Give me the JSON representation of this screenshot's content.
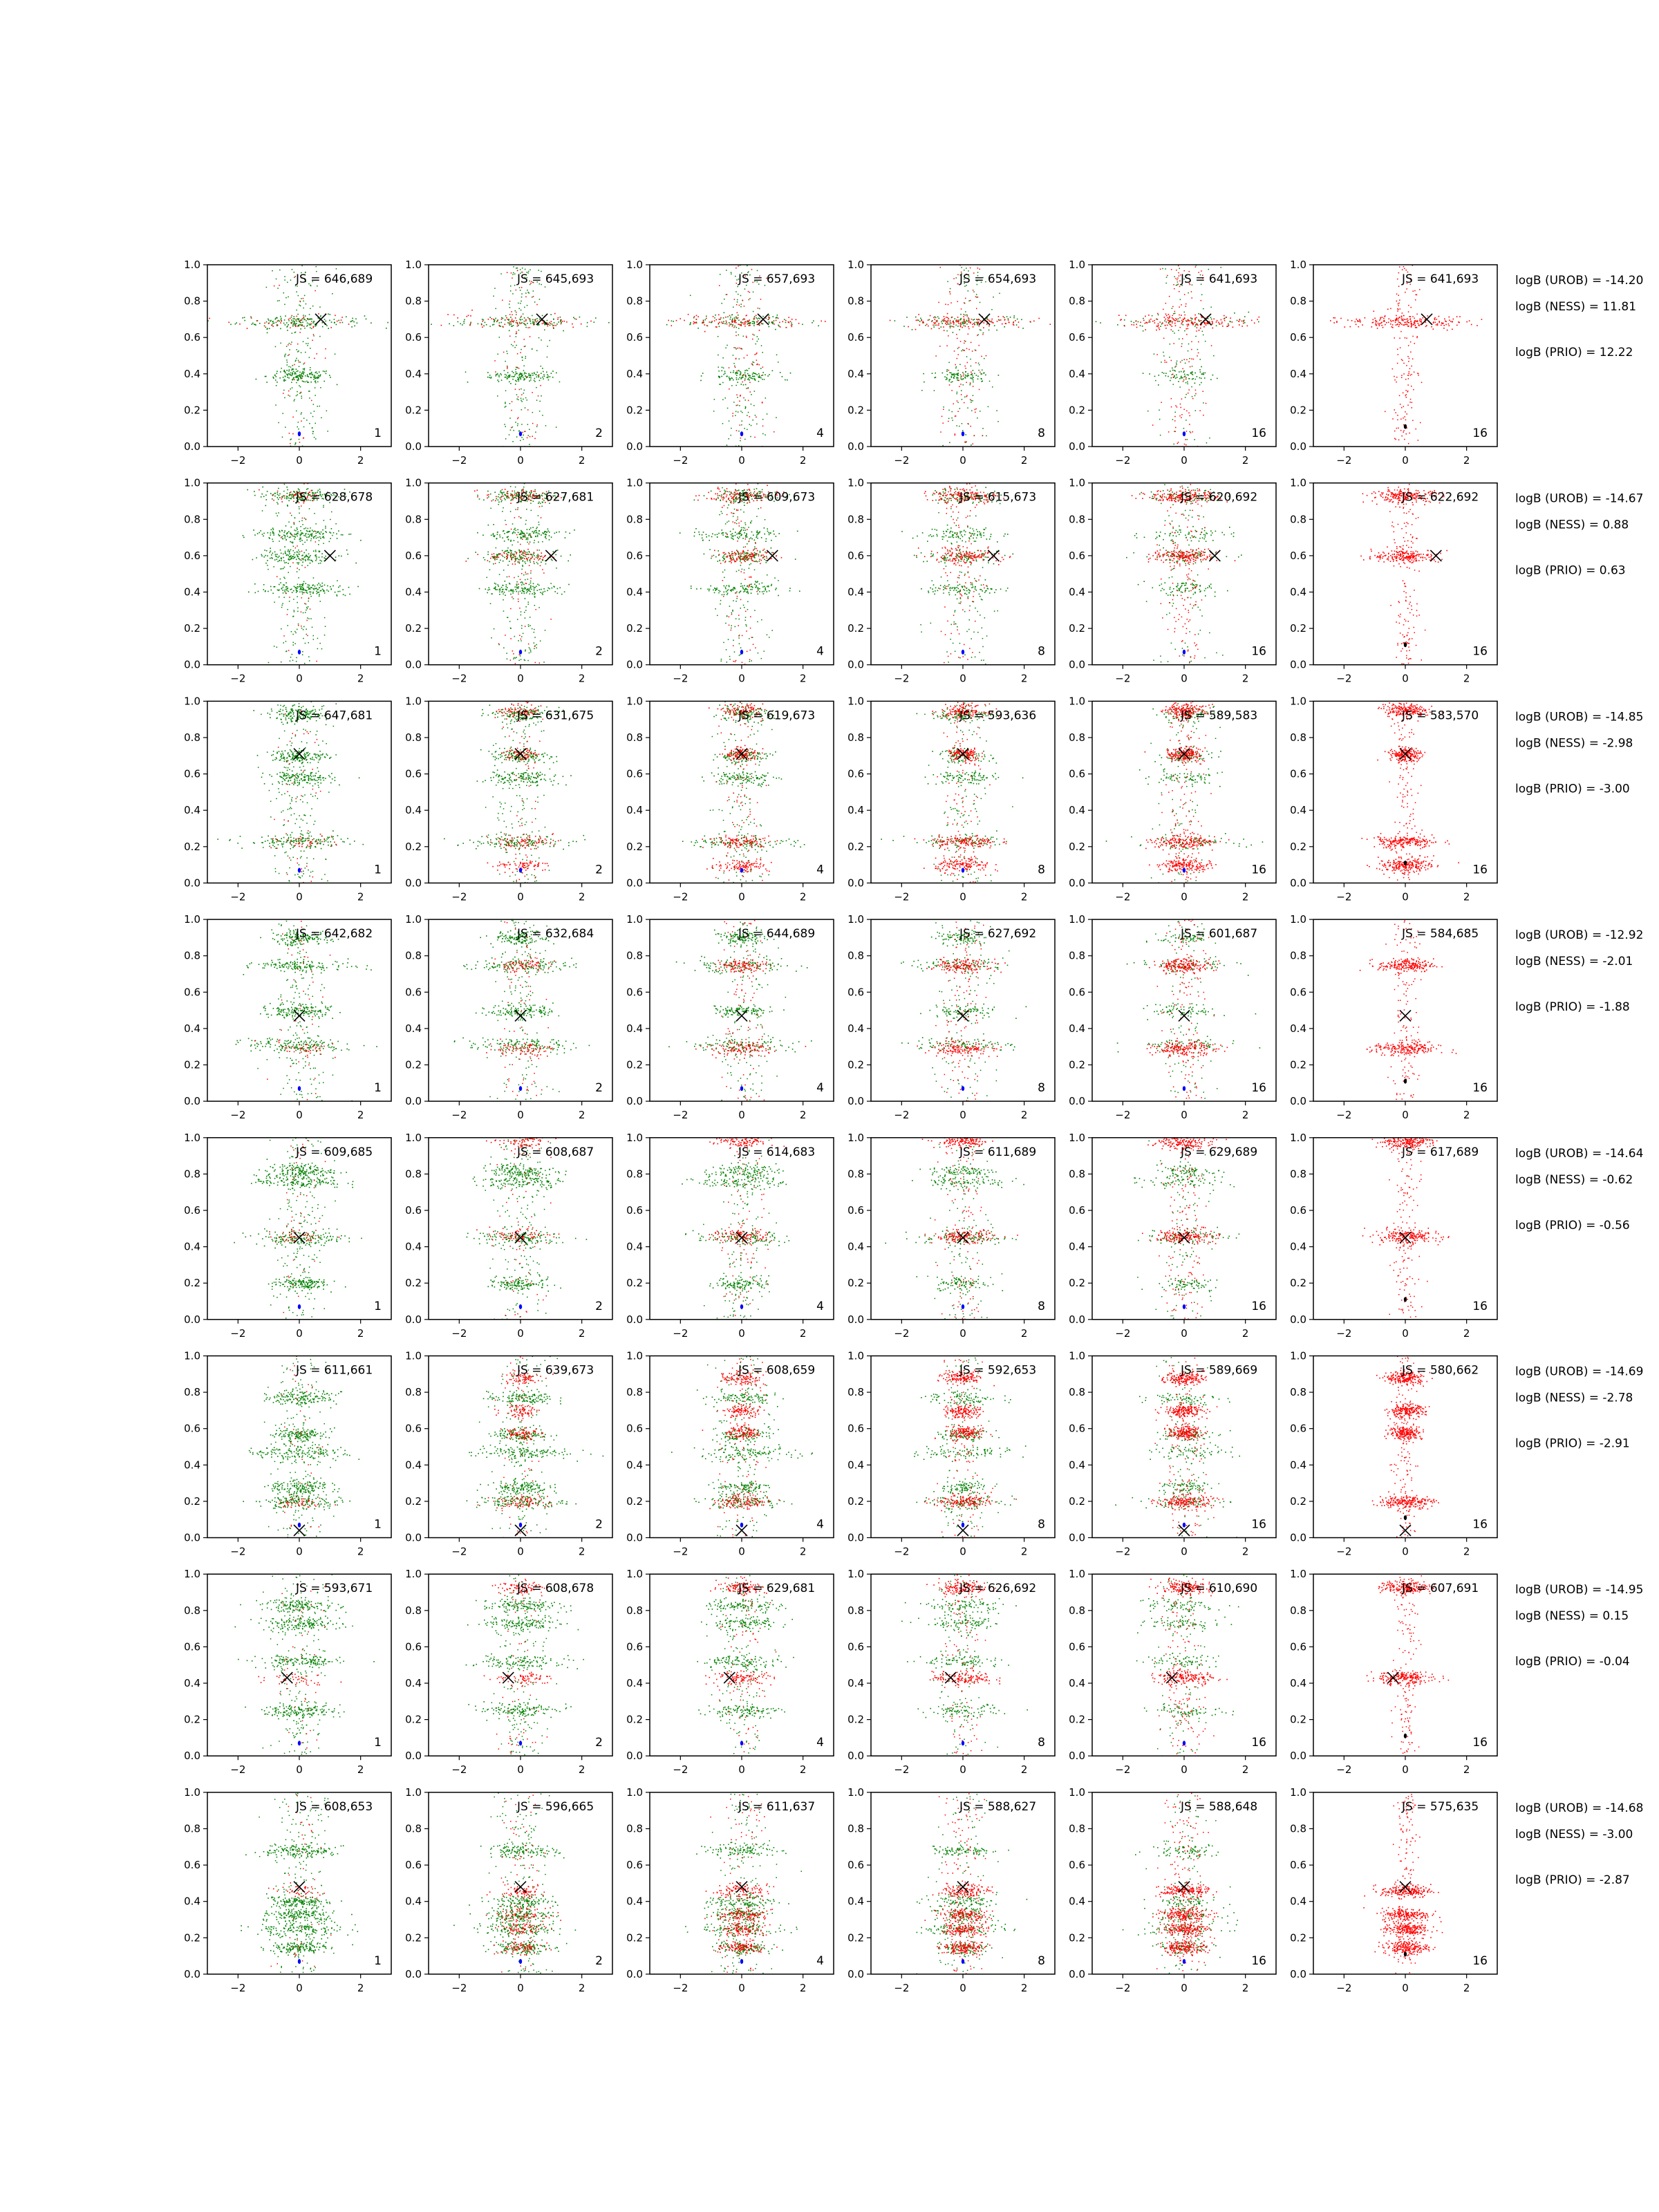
{
  "figure": {
    "x_ticks": [
      -2,
      0,
      2
    ],
    "y_ticks": [
      0.0,
      0.2,
      0.4,
      0.6,
      0.8,
      1.0
    ],
    "xlim": [
      -3,
      3
    ],
    "ylim": [
      0,
      1
    ],
    "colors": {
      "red": "#ff0000",
      "green": "#008000",
      "blue": "#0000ff",
      "black": "#000000"
    }
  },
  "chart_data": {
    "type": "scatter",
    "description_grid": "8 rows x 6 scatter panels; per-panel sample clouds (green, red), a black X marker and a small blue/black marker near the bottom",
    "columns": [
      "1",
      "2",
      "4",
      "8",
      "16",
      "16"
    ],
    "rows": [
      {
        "js": [
          "JS = 646,689",
          "JS = 645,693",
          "JS = 657,693",
          "JS = 654,693",
          "JS = 641,693",
          "JS = 641,693"
        ],
        "x_marker": [
          0.7,
          0.7
        ],
        "bands_green": [
          [
            0.69,
            2.3
          ],
          [
            0.39,
            1.2
          ]
        ],
        "bands_red": [
          [
            0.69,
            2.3
          ]
        ],
        "logB": [
          "logB (UROB) = -14.20",
          "logB (NESS) = 11.81",
          "logB (PRIO) = 12.22"
        ]
      },
      {
        "js": [
          "JS = 628,678",
          "JS = 627,681",
          "JS = 609,673",
          "JS = 615,673",
          "JS = 620,692",
          "JS = 622,692"
        ],
        "x_marker": [
          1.0,
          0.6
        ],
        "bands_green": [
          [
            0.6,
            1.5
          ],
          [
            0.42,
            1.4
          ],
          [
            0.93,
            1.3
          ],
          [
            0.72,
            1.6
          ]
        ],
        "bands_red": [
          [
            0.93,
            1.3
          ],
          [
            0.6,
            1.2
          ]
        ],
        "logB": [
          "logB (UROB) = -14.67",
          "logB (NESS) = 0.88",
          "logB (PRIO) = 0.63"
        ]
      },
      {
        "js": [
          "JS = 647,681",
          "JS = 631,675",
          "JS = 619,673",
          "JS = 593,636",
          "JS = 589,583",
          "JS = 583,570"
        ],
        "x_marker": [
          0.0,
          0.71
        ],
        "bands_green": [
          [
            0.23,
            2.0
          ],
          [
            0.58,
            1.2
          ],
          [
            0.7,
            1.0
          ],
          [
            0.93,
            1.1
          ]
        ],
        "bands_red": [
          [
            0.23,
            1.2
          ],
          [
            0.1,
            1.0
          ],
          [
            0.71,
            0.6
          ],
          [
            0.95,
            0.8
          ]
        ],
        "logB": [
          "logB (UROB) = -14.85",
          "logB (NESS) = -2.98",
          "logB (PRIO) = -3.00"
        ]
      },
      {
        "js": [
          "JS = 642,682",
          "JS = 632,684",
          "JS = 644,689",
          "JS = 627,692",
          "JS = 601,687",
          "JS = 584,685"
        ],
        "x_marker": [
          0.0,
          0.47
        ],
        "bands_green": [
          [
            0.31,
            2.0
          ],
          [
            0.75,
            1.8
          ],
          [
            0.5,
            1.2
          ],
          [
            0.9,
            1.0
          ]
        ],
        "bands_red": [
          [
            0.29,
            1.2
          ],
          [
            0.75,
            1.0
          ]
        ],
        "logB": [
          "logB (UROB) = -12.92",
          "logB (NESS) = -2.01",
          "logB (PRIO) = -1.88"
        ]
      },
      {
        "js": [
          "JS = 609,685",
          "JS = 608,687",
          "JS = 614,683",
          "JS = 611,689",
          "JS = 629,689",
          "JS = 617,689"
        ],
        "x_marker": [
          0.0,
          0.45
        ],
        "bands_green": [
          [
            0.45,
            1.7
          ],
          [
            0.82,
            1.2
          ],
          [
            0.2,
            1.0
          ],
          [
            0.76,
            1.6
          ]
        ],
        "bands_red": [
          [
            0.46,
            1.1
          ],
          [
            0.98,
            1.0
          ]
        ],
        "logB": [
          "logB (UROB) = -14.64",
          "logB (NESS) = -0.62",
          "logB (PRIO) = -0.56"
        ]
      },
      {
        "js": [
          "JS = 611,661",
          "JS = 639,673",
          "JS = 608,659",
          "JS = 592,653",
          "JS = 589,669",
          "JS = 580,662"
        ],
        "x_marker": [
          0.0,
          0.04
        ],
        "bands_green": [
          [
            0.2,
            1.6
          ],
          [
            0.47,
            1.8
          ],
          [
            0.77,
            1.2
          ],
          [
            0.57,
            1.0
          ],
          [
            0.28,
            1.0
          ]
        ],
        "bands_red": [
          [
            0.2,
            1.0
          ],
          [
            0.7,
            0.7
          ],
          [
            0.58,
            0.6
          ],
          [
            0.88,
            0.7
          ]
        ],
        "logB": [
          "logB (UROB) = -14.69",
          "logB (NESS) = -2.78",
          "logB (PRIO) = -2.91"
        ]
      },
      {
        "js": [
          "JS = 593,671",
          "JS = 608,678",
          "JS = 629,681",
          "JS = 626,692",
          "JS = 610,690",
          "JS = 607,691"
        ],
        "x_marker": [
          -0.4,
          0.43
        ],
        "bands_green": [
          [
            0.52,
            1.5
          ],
          [
            0.83,
            1.4
          ],
          [
            0.25,
            1.3
          ],
          [
            0.73,
            1.5
          ]
        ],
        "bands_red": [
          [
            0.43,
            1.1
          ],
          [
            0.93,
            0.9
          ]
        ],
        "logB": [
          "logB (UROB) = -14.95",
          "logB (NESS) = 0.15",
          "logB (PRIO) = -0.04"
        ]
      },
      {
        "js": [
          "JS = 608,653",
          "JS = 596,665",
          "JS = 611,637",
          "JS = 588,627",
          "JS = 588,648",
          "JS = 575,635"
        ],
        "x_marker": [
          0.0,
          0.48
        ],
        "bands_green": [
          [
            0.68,
            1.3
          ],
          [
            0.33,
            1.2
          ],
          [
            0.25,
            1.6
          ],
          [
            0.4,
            1.2
          ],
          [
            0.15,
            1.0
          ]
        ],
        "bands_red": [
          [
            0.46,
            0.9
          ],
          [
            0.33,
            0.9
          ],
          [
            0.15,
            0.8
          ],
          [
            0.25,
            0.8
          ]
        ],
        "logB": [
          "logB (UROB) = -14.68",
          "logB (NESS) = -3.00",
          "logB (PRIO) = -2.87"
        ]
      }
    ]
  }
}
